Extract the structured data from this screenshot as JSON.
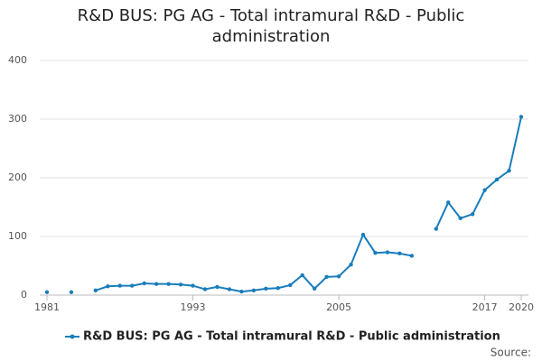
{
  "chart_data": {
    "type": "line",
    "title": "R&D BUS: PG AG - Total intramural R&D - Public administration",
    "x": [
      1981,
      1982,
      1983,
      1984,
      1985,
      1986,
      1987,
      1988,
      1989,
      1990,
      1991,
      1992,
      1993,
      1994,
      1995,
      1996,
      1997,
      1998,
      1999,
      2000,
      2001,
      2002,
      2003,
      2004,
      2005,
      2006,
      2007,
      2008,
      2009,
      2010,
      2011,
      2012,
      2013,
      2014,
      2015,
      2016,
      2017,
      2018,
      2019,
      2020
    ],
    "series": [
      {
        "name": "R&D BUS: PG AG - Total intramural R&D - Public administration",
        "color": "#1a7dbb",
        "values": [
          5,
          null,
          5,
          null,
          8,
          15,
          16,
          16,
          20,
          19,
          19,
          18,
          16,
          10,
          14,
          10,
          6,
          8,
          11,
          12,
          17,
          34,
          11,
          31,
          32,
          52,
          103,
          72,
          73,
          71,
          67,
          null,
          113,
          158,
          131,
          138,
          179,
          197,
          212,
          304
        ]
      }
    ],
    "xlim": [
      1981,
      2020
    ],
    "xticks": [
      1981,
      1993,
      2005,
      2017,
      2020
    ],
    "ylim": [
      0,
      400
    ],
    "yticks": [
      0,
      100,
      200,
      300,
      400
    ],
    "grid": true,
    "source": "Source:"
  }
}
